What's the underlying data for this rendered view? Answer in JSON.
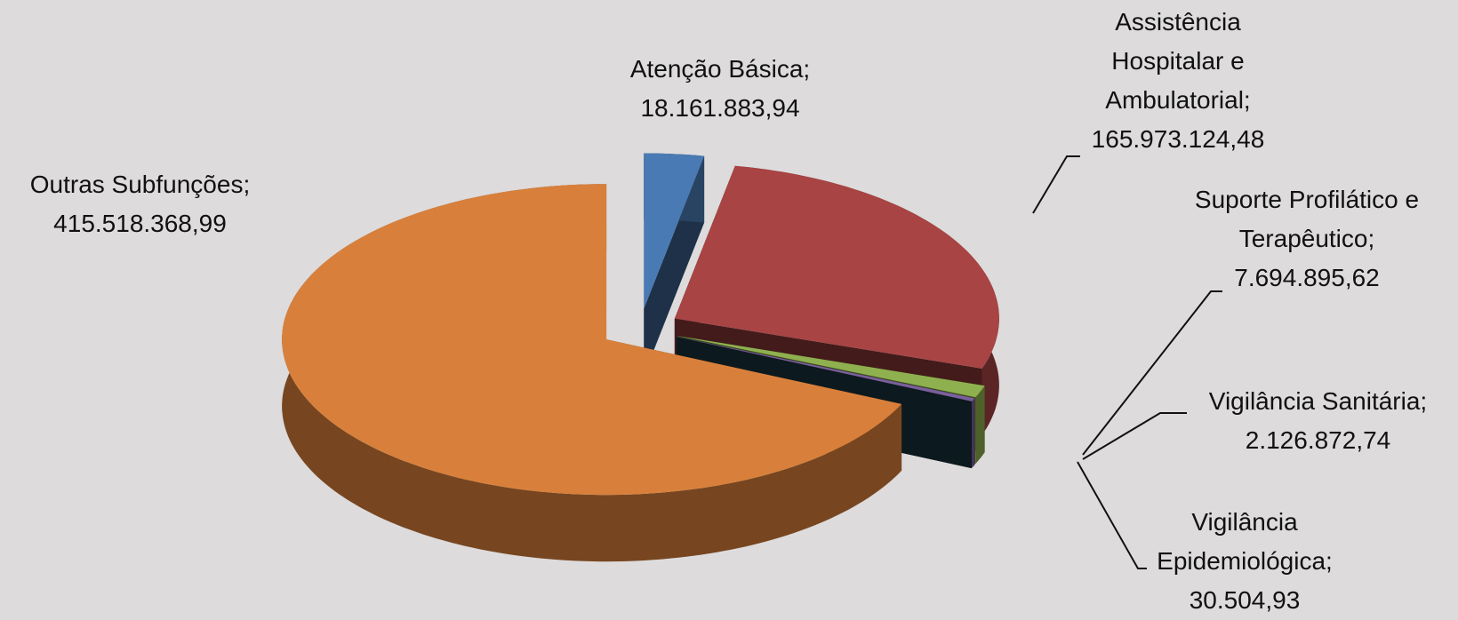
{
  "chart_data": {
    "type": "pie",
    "categories": [
      "Atenção Básica;",
      "Assistência Hospitalar e Ambulatorial;",
      "Suporte Profilático e Terapêutico;",
      "Vigilância Sanitária;",
      "Vigilância Epidemiológica;",
      "Outras Subfunções;"
    ],
    "values": [
      18161883.94,
      165973124.48,
      7694895.62,
      2126872.74,
      30504.93,
      415518368.99
    ],
    "value_labels": [
      "18.161.883,94",
      "165.973.124,48",
      "7.694.895,62",
      "2.126.872,74",
      "30.504,93",
      "415.518.368,99"
    ],
    "colors": [
      "#4a7ab3",
      "#a84444",
      "#8fb04e",
      "#7a5f9c",
      "#1d3f4c",
      "#d8803b"
    ]
  }
}
